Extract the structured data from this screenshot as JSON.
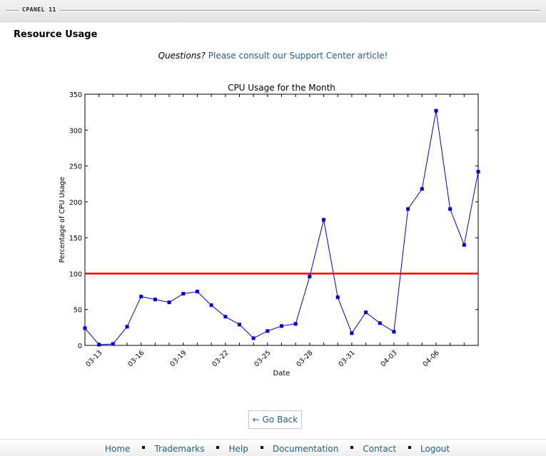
{
  "app": {
    "logo_text": "CPANEL 11"
  },
  "page": {
    "title": "Resource Usage",
    "questions_label": "Questions?",
    "support_link": "Please consult our Support Center article!"
  },
  "chart_data": {
    "type": "line",
    "title": "CPU Usage for the Month",
    "xlabel": "Date",
    "ylabel": "Percentage of CPU Usage",
    "ylim": [
      0,
      350
    ],
    "yticks": [
      0,
      50,
      100,
      150,
      200,
      250,
      300,
      350
    ],
    "x": [
      "03-12",
      "03-13",
      "03-14",
      "03-15",
      "03-16",
      "03-17",
      "03-18",
      "03-19",
      "03-20",
      "03-21",
      "03-22",
      "03-23",
      "03-24",
      "03-25",
      "03-26",
      "03-27",
      "03-28",
      "03-29",
      "03-30",
      "03-31",
      "04-01",
      "04-02",
      "04-03",
      "04-04",
      "04-05",
      "04-06",
      "04-07",
      "04-08",
      "04-09"
    ],
    "xtick_labels": [
      "03-13",
      "03-16",
      "03-19",
      "03-22",
      "03-25",
      "03-28",
      "03-31",
      "04-03",
      "04-06"
    ],
    "series": [
      {
        "values": [
          24,
          1,
          2,
          26,
          68,
          64,
          60,
          72,
          75,
          56,
          40,
          29,
          10,
          20,
          27,
          30,
          96,
          175,
          67,
          17,
          46,
          31,
          19,
          190,
          218,
          327,
          190,
          140,
          242
        ],
        "color": "#0000cc",
        "marker": "square"
      }
    ],
    "threshold": {
      "value": 100,
      "color": "#ff0000"
    },
    "grid": false
  },
  "actions": {
    "go_back": "← Go Back"
  },
  "footer": {
    "links": [
      "Home",
      "Trademarks",
      "Help",
      "Documentation",
      "Contact",
      "Logout"
    ]
  }
}
